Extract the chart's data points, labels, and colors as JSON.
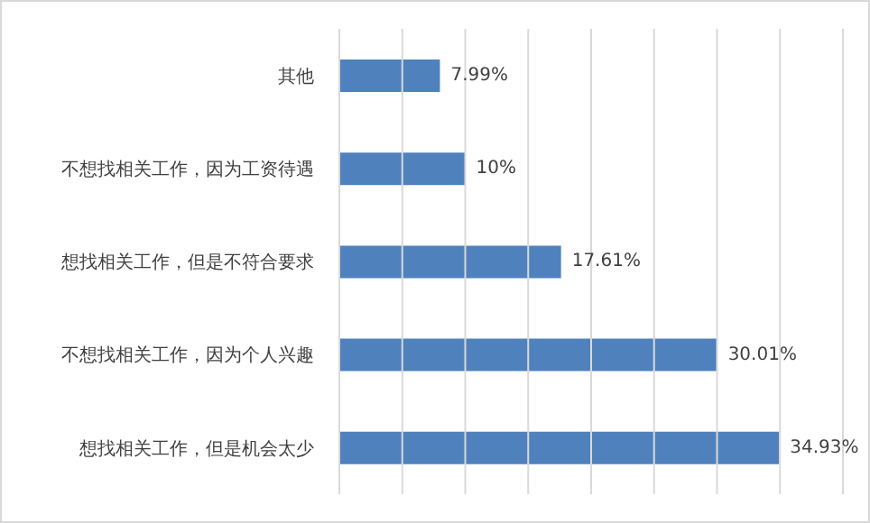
{
  "chart_data": {
    "type": "bar",
    "orientation": "horizontal",
    "categories": [
      "其他",
      "不想找相关工作，因为工资待遇",
      "想找相关工作，但是不符合要求",
      "不想找相关工作，因为个人兴趣",
      "想找相关工作，但是机会太少"
    ],
    "values": [
      7.99,
      10,
      17.61,
      30.01,
      34.93
    ],
    "value_labels": [
      "7.99%",
      "10%",
      "17.61%",
      "30.01%",
      "34.93%"
    ],
    "color": "#4f81bd",
    "xlim": [
      0,
      40
    ],
    "xticks": [
      {
        "value": 0,
        "label": null
      },
      {
        "value": 5,
        "label": null
      },
      {
        "value": 10,
        "label": null
      },
      {
        "value": 15,
        "label": null
      },
      {
        "value": 20,
        "label": null
      },
      {
        "value": 25,
        "label": null
      },
      {
        "value": 30,
        "label": null
      },
      {
        "value": 35,
        "label": null
      },
      {
        "value": 40,
        "label": null
      }
    ],
    "grid": "x",
    "tick_labels": "y"
  }
}
